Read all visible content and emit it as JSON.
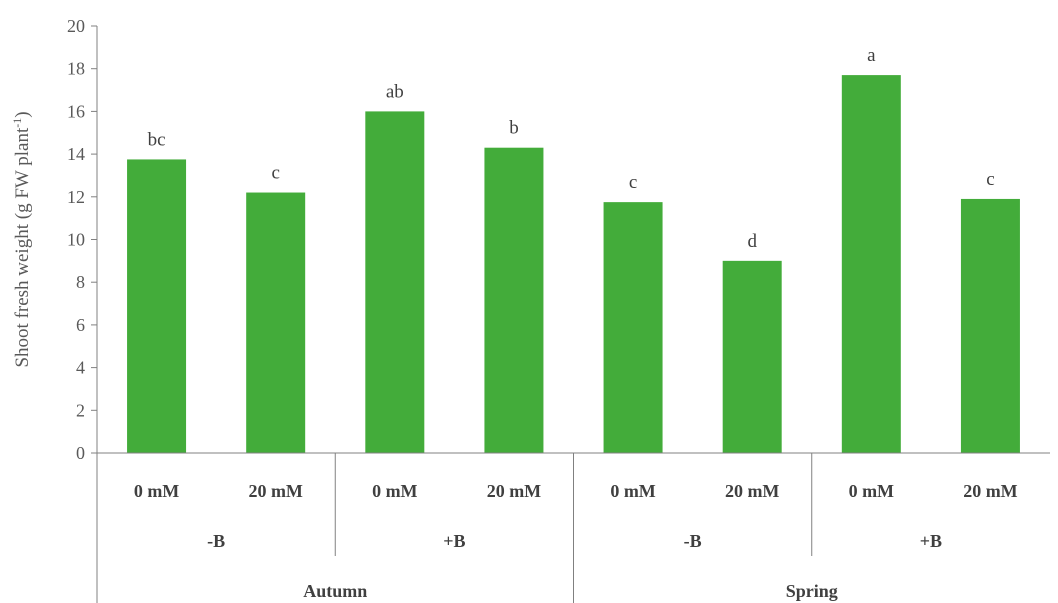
{
  "chart_data": {
    "type": "bar",
    "ylabel": "Shoot fresh weight (g FW plant-1)",
    "ylim": [
      0,
      20
    ],
    "yticks": [
      0,
      2,
      4,
      6,
      8,
      10,
      12,
      14,
      16,
      18,
      20
    ],
    "bar_color": "#43AC3A",
    "grid": false,
    "legend": "none",
    "categories": [
      "0 mM",
      "20 mM",
      "0 mM",
      "20 mM",
      "0 mM",
      "20 mM",
      "0 mM",
      "20 mM"
    ],
    "boron_groups": [
      "-B",
      "+B",
      "-B",
      "+B"
    ],
    "season_groups": [
      "Autumn",
      "Spring"
    ],
    "values": [
      13.75,
      12.2,
      16.0,
      14.3,
      11.75,
      9.0,
      17.7,
      11.9
    ],
    "data_labels": [
      "bc",
      "c",
      "ab",
      "b",
      "c",
      "d",
      "a",
      "c"
    ]
  }
}
